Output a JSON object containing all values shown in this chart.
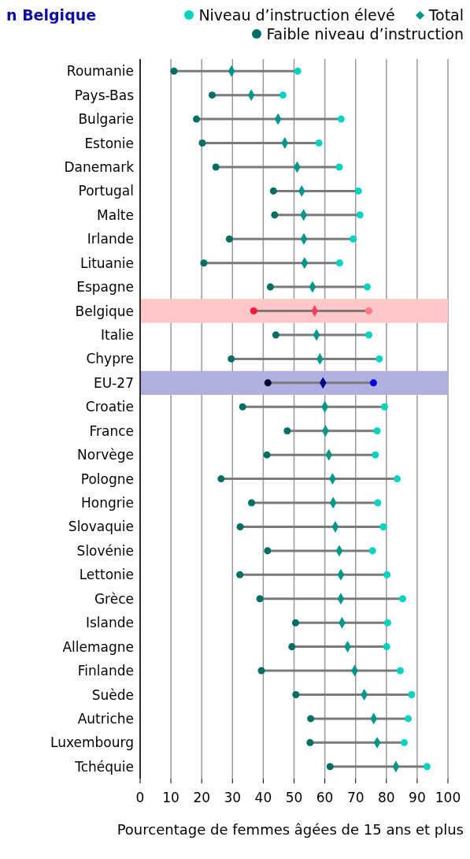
{
  "chart_data": {
    "type": "scatter",
    "orientation": "horizontal",
    "title": "n Belgique",
    "xlabel": "Pourcentage de femmes âgées de 15 ans et plus",
    "categories": [
      "Roumanie",
      "Pays-Bas",
      "Bulgarie",
      "Estonie",
      "Danemark",
      "Portugal",
      "Malte",
      "Irlande",
      "Lituanie",
      "Espagne",
      "Belgique",
      "Italie",
      "Chypre",
      "EU-27",
      "Croatie",
      "France",
      "Norvège",
      "Pologne",
      "Hongrie",
      "Slovaquie",
      "Slovénie",
      "Lettonie",
      "Grèce",
      "Islande",
      "Allemagne",
      "Finlande",
      "Suède",
      "Autriche",
      "Luxembourg",
      "Tchéquie"
    ],
    "series": [
      {
        "name": "Niveau d’instruction élevé",
        "color": "#00d4c0",
        "marker": "circle",
        "values": [
          51.2,
          46.4,
          65.3,
          58.1,
          64.7,
          70.9,
          71.4,
          69.2,
          64.8,
          73.8,
          74.3,
          74.3,
          77.7,
          75.8,
          79.4,
          77.0,
          76.4,
          83.5,
          77.2,
          79.0,
          75.5,
          80.2,
          85.3,
          80.4,
          80.1,
          84.5,
          88.2,
          87.1,
          85.8,
          93.2
        ],
        "colors": [
          "#00d4c0",
          "#00d4c0",
          "#00d4c0",
          "#00d4c0",
          "#00d4c0",
          "#00d4c0",
          "#00d4c0",
          "#00d4c0",
          "#00d4c0",
          "#00d4c0",
          "#ff7a80",
          "#00d4c0",
          "#00d4c0",
          "#0000e0",
          "#00d4c0",
          "#00d4c0",
          "#00d4c0",
          "#00d4c0",
          "#00d4c0",
          "#00d4c0",
          "#00d4c0",
          "#00d4c0",
          "#00d4c0",
          "#00d4c0",
          "#00d4c0",
          "#00d4c0",
          "#00d4c0",
          "#00d4c0",
          "#00d4c0",
          "#00d4c0"
        ]
      },
      {
        "name": "Total",
        "color": "#00968a",
        "marker": "diamond",
        "values": [
          29.7,
          36.1,
          44.8,
          47.0,
          51.0,
          52.5,
          53.1,
          53.2,
          53.4,
          56.0,
          56.7,
          57.3,
          58.4,
          59.4,
          60.0,
          60.2,
          61.3,
          62.5,
          62.7,
          63.4,
          64.7,
          65.2,
          65.2,
          65.6,
          67.4,
          69.7,
          72.8,
          75.9,
          77.0,
          83.1
        ],
        "colors": [
          "#00968a",
          "#00968a",
          "#00968a",
          "#00968a",
          "#00968a",
          "#00968a",
          "#00968a",
          "#00968a",
          "#00968a",
          "#00968a",
          "#ff4060",
          "#00968a",
          "#00968a",
          "#00008b",
          "#00968a",
          "#00968a",
          "#00968a",
          "#00968a",
          "#00968a",
          "#00968a",
          "#00968a",
          "#00968a",
          "#00968a",
          "#00968a",
          "#00968a",
          "#00968a",
          "#00968a",
          "#00968a",
          "#00968a",
          "#00968a"
        ]
      },
      {
        "name": "Faible niveau d’instruction",
        "color": "#006e63",
        "marker": "circle",
        "values": [
          11.0,
          23.4,
          18.3,
          20.2,
          24.6,
          43.3,
          43.7,
          29.0,
          20.7,
          42.3,
          36.9,
          44.1,
          29.6,
          41.5,
          33.3,
          47.8,
          41.2,
          26.3,
          36.2,
          32.5,
          41.4,
          32.4,
          38.9,
          50.5,
          49.3,
          39.4,
          50.6,
          55.4,
          55.2,
          61.7
        ],
        "colors": [
          "#006e63",
          "#006e63",
          "#006e63",
          "#006e63",
          "#006e63",
          "#006e63",
          "#006e63",
          "#006e63",
          "#006e63",
          "#006e63",
          "#ff1a3a",
          "#006e63",
          "#006e63",
          "#000033",
          "#006e63",
          "#006e63",
          "#006e63",
          "#006e63",
          "#006e63",
          "#006e63",
          "#006e63",
          "#006e63",
          "#006e63",
          "#006e63",
          "#006e63",
          "#006e63",
          "#006e63",
          "#006e63",
          "#006e63",
          "#006e63"
        ]
      }
    ],
    "bands": [
      {
        "axis": "y",
        "from": "Belgique",
        "to": "Belgique",
        "color": "#ffc8c8"
      },
      {
        "axis": "y",
        "from": "EU-27",
        "to": "EU-27",
        "color": "#b0b0e0"
      }
    ],
    "xlim": [
      0,
      100
    ],
    "xticks": [
      0,
      10,
      20,
      30,
      40,
      50,
      60,
      70,
      80,
      90,
      100
    ],
    "grid": "x",
    "legend": "top right"
  }
}
